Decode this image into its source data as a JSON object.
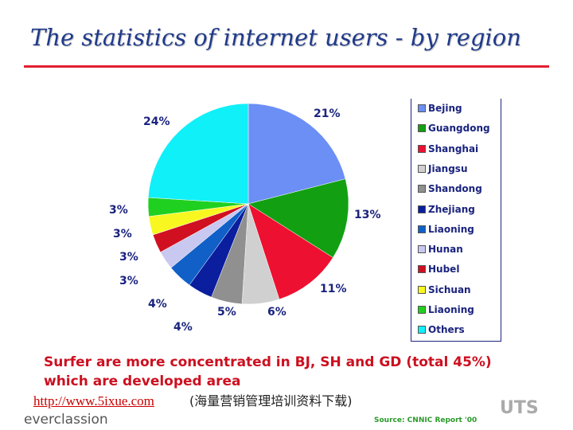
{
  "title": "The statistics of internet users - by region",
  "chart_data": {
    "type": "pie",
    "categories": [
      "Bejing",
      "Guangdong",
      "Shanghai",
      "Jiangsu",
      "Shandong",
      "Zhejiang",
      "Liaoning",
      "Hunan",
      "Hubel",
      "Sichuan",
      "Liaoning",
      "Others"
    ],
    "values": [
      21,
      13,
      11,
      6,
      5,
      4,
      4,
      3,
      3,
      3,
      3,
      24
    ],
    "labels": [
      "21%",
      "13%",
      "11%",
      "6%",
      "5%",
      "4%",
      "4%",
      "3%",
      "3%",
      "3%",
      "3%",
      "24%"
    ],
    "colors": [
      "#6b8ff5",
      "#12a012",
      "#ee1030",
      "#d0d0d0",
      "#909090",
      "#0a1e9e",
      "#1060c8",
      "#c8c8f0",
      "#d01020",
      "#f8f820",
      "#20d020",
      "#10f0f8"
    ],
    "legend": "right"
  },
  "summary": "Surfer are more concentrated in BJ, SH and GD (total 45%) which are developed area",
  "footer": {
    "link": "http://www.5ixue.com",
    "chinese": "(海量营销管理培训资料下载)",
    "source": "Source: CNNIC Report '00",
    "brand": "everclassion",
    "logo": "UTS"
  }
}
